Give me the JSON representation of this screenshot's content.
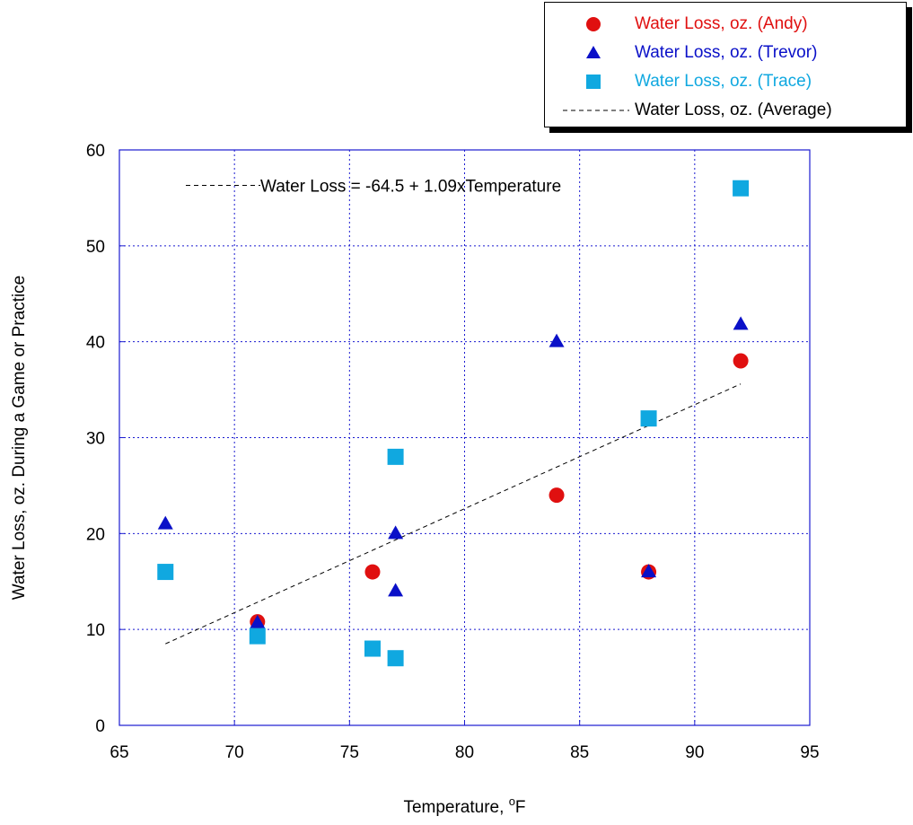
{
  "chart_data": {
    "type": "scatter",
    "xlabel": "Temperature, °F",
    "xlabel_main": "Temperature, ",
    "xlabel_sup": "o",
    "xlabel_unit": "F",
    "ylabel": "Water Loss, oz. During a Game or Practice",
    "xlim": [
      65,
      95
    ],
    "ylim": [
      0,
      60
    ],
    "x_ticks": [
      65,
      70,
      75,
      80,
      85,
      90,
      95
    ],
    "y_ticks": [
      0,
      10,
      20,
      30,
      40,
      50,
      60
    ],
    "grid": true,
    "legend_position": "top-right",
    "annotation": "Water Loss = -64.5 + 1.09xTemperature",
    "series": [
      {
        "name": "Water Loss, oz. (Andy)",
        "marker": "circle",
        "color": "#e01010",
        "x": [
          71,
          76,
          84,
          88,
          92
        ],
        "y": [
          10.8,
          16,
          24,
          16,
          38
        ]
      },
      {
        "name": "Water Loss, oz. (Trevor)",
        "marker": "triangle",
        "color": "#0a10c8",
        "x": [
          67,
          71,
          77,
          77,
          84,
          88,
          92
        ],
        "y": [
          21,
          10.7,
          20,
          14,
          40,
          16,
          41.8
        ]
      },
      {
        "name": "Water Loss, oz. (Trace)",
        "marker": "square",
        "color": "#10a8e0",
        "x": [
          67,
          71,
          76,
          77,
          77,
          88,
          92
        ],
        "y": [
          16,
          9.3,
          8,
          28,
          7,
          32,
          56
        ]
      },
      {
        "name": "Water Loss, oz. (Average)",
        "marker": "dashed-line",
        "color": "#000000",
        "x": [
          67,
          92
        ],
        "y": [
          8.5,
          35.6
        ]
      }
    ]
  }
}
